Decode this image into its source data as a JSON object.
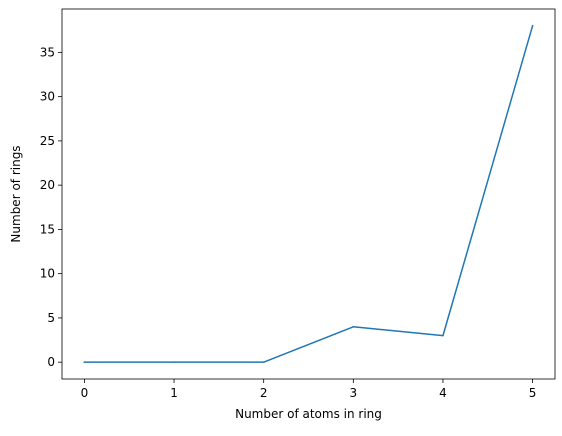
{
  "chart_data": {
    "type": "line",
    "title": "",
    "xlabel": "Number of atoms in ring",
    "ylabel": "Number of rings",
    "x": [
      0,
      1,
      2,
      3,
      4,
      5
    ],
    "series": [
      {
        "values": [
          0,
          0,
          0,
          4,
          3,
          38
        ],
        "color": "#1f77b4"
      }
    ],
    "xlim": [
      -0.25,
      5.25
    ],
    "ylim": [
      -1.9,
      39.9
    ],
    "xticks": [
      0,
      1,
      2,
      3,
      4,
      5
    ],
    "yticks": [
      0,
      5,
      10,
      15,
      20,
      25,
      30,
      35
    ],
    "grid": false,
    "legend": "none"
  }
}
